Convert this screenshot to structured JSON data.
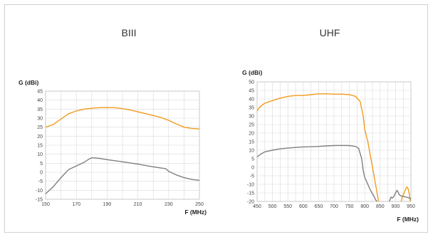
{
  "chart_data": [
    {
      "type": "line",
      "title": "BIII",
      "ylabel": "G (dBi)",
      "xlabel": "F (MHz)",
      "xlim": [
        150,
        250
      ],
      "ylim": [
        -15,
        45
      ],
      "xticks": [
        150,
        170,
        190,
        210,
        230,
        250
      ],
      "yticks": [
        45,
        40,
        35,
        30,
        25,
        20,
        15,
        10,
        5,
        0,
        -5,
        -10,
        -15
      ],
      "grid": true,
      "series": [
        {
          "color": "#f29b1d",
          "points": [
            [
              150,
              25
            ],
            [
              155,
              26.5
            ],
            [
              160,
              29.5
            ],
            [
              165,
              32.5
            ],
            [
              170,
              34
            ],
            [
              175,
              35
            ],
            [
              180,
              35.5
            ],
            [
              185,
              35.8
            ],
            [
              190,
              35.9
            ],
            [
              195,
              35.8
            ],
            [
              200,
              35.3
            ],
            [
              205,
              34.5
            ],
            [
              210,
              33.5
            ],
            [
              215,
              32.5
            ],
            [
              220,
              31.5
            ],
            [
              225,
              30.3
            ],
            [
              230,
              28.8
            ],
            [
              235,
              26.8
            ],
            [
              240,
              25
            ],
            [
              245,
              24.3
            ],
            [
              250,
              24
            ]
          ]
        },
        {
          "color": "#7f7f7f",
          "points": [
            [
              150,
              -12
            ],
            [
              155,
              -8
            ],
            [
              160,
              -3
            ],
            [
              165,
              1.5
            ],
            [
              170,
              3.5
            ],
            [
              175,
              5.5
            ],
            [
              178,
              7.2
            ],
            [
              180,
              8
            ],
            [
              185,
              7.7
            ],
            [
              190,
              7
            ],
            [
              200,
              5.8
            ],
            [
              210,
              4.5
            ],
            [
              220,
              3
            ],
            [
              228,
              2
            ],
            [
              230,
              0.5
            ],
            [
              235,
              -1.5
            ],
            [
              240,
              -3
            ],
            [
              245,
              -4
            ],
            [
              250,
              -4.5
            ]
          ]
        }
      ]
    },
    {
      "type": "line",
      "title": "UHF",
      "ylabel": "G (dBi)",
      "xlabel": "F (MHz)",
      "xlim": [
        450,
        950
      ],
      "ylim": [
        -20,
        50
      ],
      "xticks": [
        450,
        500,
        550,
        600,
        650,
        700,
        750,
        800,
        850,
        900,
        950
      ],
      "yticks": [
        50,
        45,
        40,
        35,
        30,
        25,
        20,
        15,
        10,
        5,
        0,
        -5,
        -10,
        -15,
        -20
      ],
      "grid": true,
      "series": [
        {
          "color": "#f29b1d",
          "points": [
            [
              450,
              33
            ],
            [
              460,
              35.5
            ],
            [
              475,
              37.5
            ],
            [
              500,
              39
            ],
            [
              525,
              40.5
            ],
            [
              550,
              41.5
            ],
            [
              575,
              42
            ],
            [
              600,
              42
            ],
            [
              625,
              42.5
            ],
            [
              650,
              43
            ],
            [
              675,
              43
            ],
            [
              700,
              42.8
            ],
            [
              725,
              42.8
            ],
            [
              750,
              42.5
            ],
            [
              770,
              41.5
            ],
            [
              785,
              38.5
            ],
            [
              795,
              30
            ],
            [
              800,
              22
            ],
            [
              810,
              15
            ],
            [
              820,
              5
            ],
            [
              830,
              -5
            ],
            [
              840,
              -15
            ],
            [
              845,
              -20
            ]
          ],
          "tail": [
            [
              918,
              -20
            ],
            [
              923,
              -17
            ],
            [
              930,
              -14
            ],
            [
              936,
              -11.5
            ],
            [
              941,
              -12.5
            ],
            [
              945,
              -16
            ],
            [
              948,
              -20
            ]
          ]
        },
        {
          "color": "#7f7f7f",
          "points": [
            [
              450,
              6
            ],
            [
              460,
              7.5
            ],
            [
              475,
              9
            ],
            [
              500,
              10
            ],
            [
              525,
              10.8
            ],
            [
              550,
              11.2
            ],
            [
              575,
              11.6
            ],
            [
              600,
              11.9
            ],
            [
              625,
              12
            ],
            [
              650,
              12.2
            ],
            [
              675,
              12.5
            ],
            [
              700,
              12.7
            ],
            [
              725,
              12.8
            ],
            [
              750,
              12.7
            ],
            [
              770,
              12.2
            ],
            [
              780,
              11
            ],
            [
              790,
              5
            ],
            [
              795,
              -2
            ],
            [
              800,
              -6
            ],
            [
              810,
              -10
            ],
            [
              820,
              -14
            ],
            [
              830,
              -17
            ],
            [
              835,
              -19
            ],
            [
              840,
              -20
            ]
          ],
          "tail": [
            [
              880,
              -20
            ],
            [
              885,
              -17.5
            ],
            [
              890,
              -18
            ],
            [
              895,
              -17
            ],
            [
              900,
              -15
            ],
            [
              905,
              -13.5
            ],
            [
              908,
              -14.5
            ],
            [
              912,
              -16
            ],
            [
              918,
              -16.8
            ],
            [
              925,
              -17
            ],
            [
              935,
              -17.5
            ],
            [
              945,
              -18
            ],
            [
              950,
              -18.5
            ]
          ]
        }
      ]
    }
  ]
}
